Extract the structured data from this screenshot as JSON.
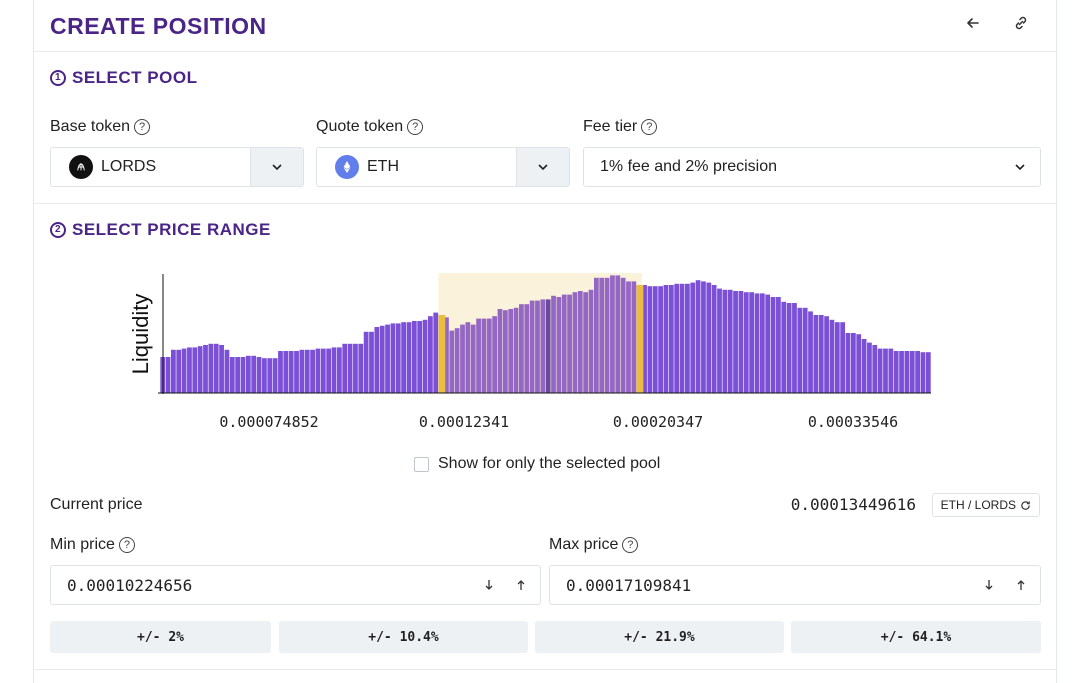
{
  "header": {
    "title": "CREATE POSITION",
    "back_icon": "arrow-left-icon",
    "link_icon": "link-icon"
  },
  "select_pool": {
    "step": "1",
    "title": "SELECT POOL",
    "base_token": {
      "label": "Base token",
      "value": "LORDS",
      "icon": "lords-token-icon"
    },
    "quote_token": {
      "label": "Quote token",
      "value": "ETH",
      "icon": "eth-token-icon"
    },
    "fee_tier": {
      "label": "Fee tier",
      "value": "1% fee and 2% precision"
    }
  },
  "select_range": {
    "step": "2",
    "title": "SELECT PRICE RANGE",
    "show_selected_only": "Show for only the selected pool",
    "show_selected_checked": false
  },
  "chart_data": {
    "type": "bar",
    "ylabel": "Liquidity",
    "xlabel": "",
    "x_tick_labels": [
      "0.000074852",
      "0.00012341",
      "0.00020347",
      "0.00033546"
    ],
    "selected_range": [
      "0.00010224656",
      "0.00017109841"
    ],
    "current_price": "0.00013449616",
    "values": [
      30,
      30,
      36,
      36,
      37,
      38,
      38,
      39,
      40,
      41,
      41,
      40,
      36,
      30,
      30,
      30,
      31,
      31,
      30,
      29,
      29,
      29,
      35,
      35,
      35,
      35,
      36,
      36,
      36,
      37,
      37,
      37,
      38,
      38,
      41,
      41,
      41,
      41,
      51,
      51,
      55,
      56,
      57,
      58,
      58,
      59,
      59,
      60,
      60,
      61,
      64,
      67,
      65,
      63,
      52,
      54,
      57,
      59,
      57,
      62,
      62,
      62,
      64,
      70,
      69,
      70,
      71,
      74,
      74,
      77,
      77,
      78,
      78,
      81,
      80,
      82,
      82,
      84,
      85,
      84,
      86,
      96,
      96,
      96,
      98,
      98,
      96,
      93,
      93,
      90,
      90,
      89,
      89,
      89,
      90,
      90,
      91,
      91,
      91,
      92,
      94,
      93,
      92,
      90,
      87,
      86,
      86,
      85,
      85,
      84,
      84,
      83,
      83,
      82,
      80,
      80,
      76,
      75,
      75,
      71,
      71,
      68,
      65,
      65,
      64,
      61,
      59,
      59,
      50,
      50,
      49,
      45,
      42,
      40,
      37,
      37,
      37,
      35,
      35,
      35,
      35,
      35,
      34,
      34,
      34,
      33,
      33,
      33,
      32,
      31,
      30,
      30,
      30,
      26,
      26,
      26,
      26,
      26,
      26,
      26,
      26,
      26,
      26,
      26,
      26,
      26,
      26,
      26,
      26,
      26,
      26,
      26,
      26,
      26,
      26,
      26,
      26,
      26,
      26,
      26,
      26,
      26,
      26,
      26,
      26,
      26,
      26,
      26,
      26,
      26,
      26,
      26,
      26,
      26,
      26,
      26,
      26,
      26,
      26,
      26,
      26,
      26,
      26,
      26,
      26,
      26,
      26,
      26,
      26,
      26,
      26,
      26,
      26,
      26,
      26,
      26,
      26,
      26,
      26,
      26,
      26,
      26,
      26,
      26,
      26,
      26,
      26,
      26,
      26,
      26,
      26,
      26,
      26,
      26,
      26,
      26,
      26,
      26,
      26,
      26,
      26,
      26,
      26,
      26,
      26,
      26,
      26,
      26,
      26,
      26,
      26,
      26,
      26,
      26,
      26,
      26,
      26,
      26,
      26,
      26,
      26,
      26,
      26,
      26,
      26,
      26,
      26,
      26,
      26,
      26,
      26,
      26,
      26,
      26,
      26,
      26,
      26,
      26,
      26,
      26,
      26,
      26,
      26,
      26,
      26,
      26,
      26,
      26,
      26,
      26,
      26
    ],
    "ylim": [
      0,
      100
    ],
    "grid": false,
    "colors": {
      "bar": "#7b4fd6",
      "bar_in_range": "#9467c2",
      "range_fill": "#fbf2dc",
      "range_edge": "#e8bd42",
      "current_price_bar": "#6a4a9c"
    }
  },
  "current_price": {
    "label": "Current price",
    "value": "0.00013449616",
    "pair_label": "ETH / LORDS",
    "swap_icon": "refresh-icon"
  },
  "min_price": {
    "label": "Min price",
    "value": "0.00010224656"
  },
  "max_price": {
    "label": "Max price",
    "value": "0.00017109841"
  },
  "range_presets": [
    "+/- 2%",
    "+/- 10.4%",
    "+/- 21.9%",
    "+/- 64.1%"
  ],
  "colors": {
    "accent": "#4a2587",
    "border": "#dfe3e8",
    "button_bg": "#eef1f4"
  }
}
